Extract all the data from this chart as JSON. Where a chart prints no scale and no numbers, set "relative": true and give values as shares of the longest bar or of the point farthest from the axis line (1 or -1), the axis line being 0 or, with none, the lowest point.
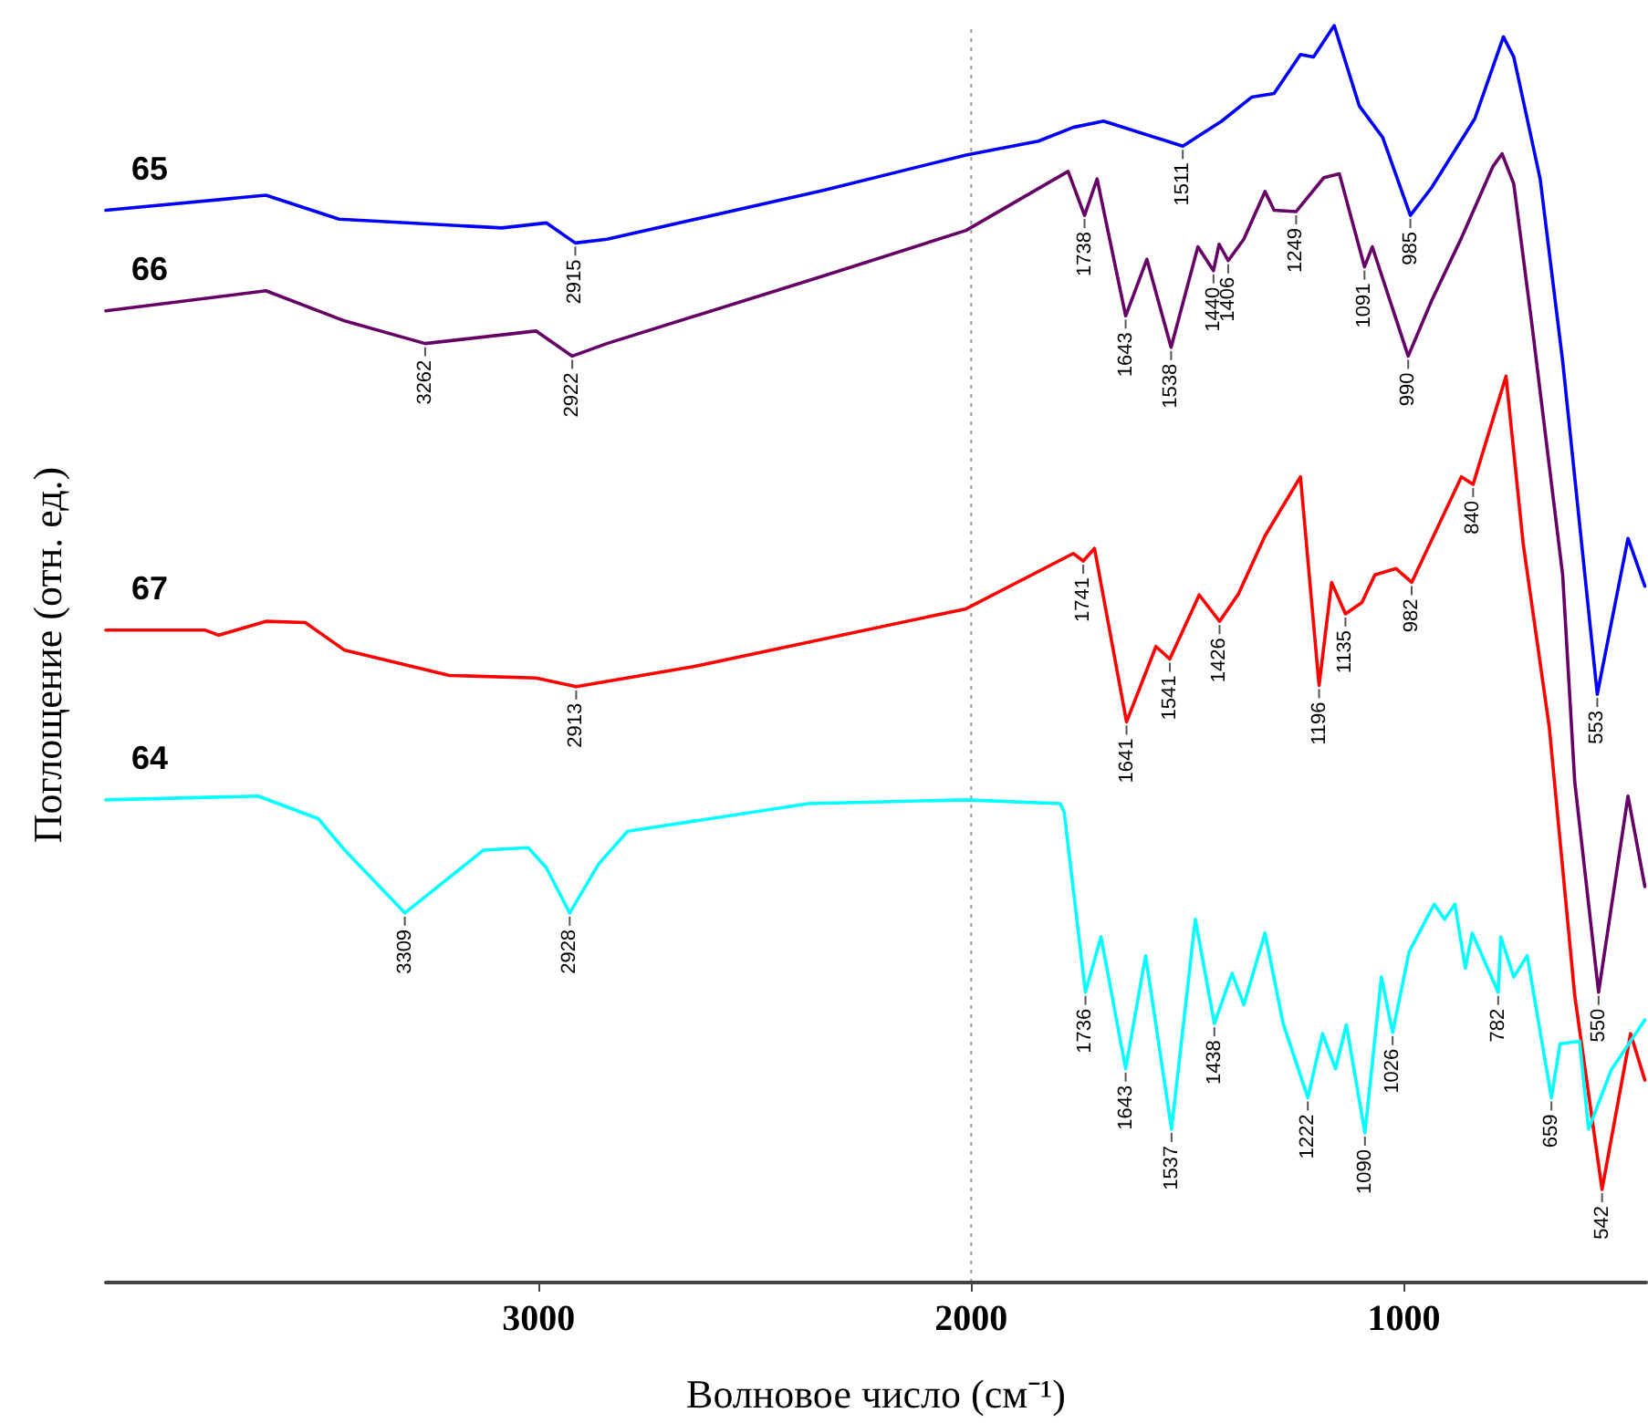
{
  "chart_data": {
    "type": "line",
    "relative": true,
    "xlabel": "Волновое число (см⁻¹)",
    "ylabel": "Поглощение (отн. ед.)",
    "xlim": [
      4000,
      440
    ],
    "xticks": [
      3000,
      2000,
      1000
    ],
    "grid": false,
    "legend": false,
    "marker": "none",
    "line_style": "solid",
    "ref_lines": [
      {
        "axis": "x",
        "value": 2000,
        "color": "#999999",
        "line_style": "dotted"
      }
    ],
    "series": [
      {
        "name": "65",
        "color": "#0000ff",
        "x": [
          4000,
          3630,
          3461,
          3085,
          2982,
          2915,
          2842,
          2340,
          2012,
          1845,
          1764,
          1694,
          1511,
          1421,
          1352,
          1300,
          1239,
          1209,
          1161,
          1103,
          1049,
          985,
          936,
          836,
          770,
          746,
          685,
          633,
          553,
          482,
          443
        ],
        "values": [
          0.853,
          0.865,
          0.846,
          0.839,
          0.843,
          0.827,
          0.83,
          0.869,
          0.897,
          0.908,
          0.919,
          0.924,
          0.904,
          0.924,
          0.943,
          0.946,
          0.977,
          0.975,
          1.0,
          0.936,
          0.911,
          0.849,
          0.871,
          0.926,
          0.991,
          0.975,
          0.878,
          0.733,
          0.468,
          0.592,
          0.554
        ]
      },
      {
        "name": "66",
        "color": "#660066",
        "x": [
          4000,
          3630,
          3448,
          3262,
          3006,
          2922,
          2842,
          2340,
          2012,
          1776,
          1738,
          1709,
          1643,
          1594,
          1538,
          1476,
          1440,
          1427,
          1406,
          1370,
          1321,
          1300,
          1249,
          1185,
          1149,
          1091,
          1073,
          990,
          936,
          867,
          794,
          773,
          746,
          704,
          633,
          605,
          550,
          482,
          443
        ],
        "values": [
          0.773,
          0.789,
          0.765,
          0.747,
          0.757,
          0.737,
          0.747,
          0.801,
          0.837,
          0.884,
          0.849,
          0.878,
          0.769,
          0.814,
          0.744,
          0.824,
          0.805,
          0.826,
          0.813,
          0.83,
          0.868,
          0.853,
          0.852,
          0.879,
          0.882,
          0.808,
          0.824,
          0.737,
          0.781,
          0.831,
          0.888,
          0.898,
          0.874,
          0.762,
          0.563,
          0.398,
          0.231,
          0.387,
          0.315
        ]
      },
      {
        "name": "67",
        "color": "#ff0000",
        "x": [
          4000,
          3770,
          3739,
          3630,
          3539,
          3448,
          3206,
          3006,
          2913,
          2642,
          2012,
          1764,
          1741,
          1715,
          1641,
          1573,
          1541,
          1473,
          1426,
          1382,
          1321,
          1239,
          1196,
          1167,
          1135,
          1097,
          1067,
          1018,
          982,
          867,
          840,
          764,
          724,
          664,
          605,
          542,
          476,
          443
        ],
        "values": [
          0.519,
          0.519,
          0.515,
          0.526,
          0.525,
          0.503,
          0.483,
          0.481,
          0.474,
          0.49,
          0.536,
          0.58,
          0.574,
          0.584,
          0.446,
          0.506,
          0.496,
          0.547,
          0.526,
          0.548,
          0.594,
          0.641,
          0.475,
          0.557,
          0.532,
          0.541,
          0.563,
          0.568,
          0.557,
          0.641,
          0.635,
          0.721,
          0.587,
          0.442,
          0.228,
          0.074,
          0.198,
          0.161
        ]
      },
      {
        "name": "64",
        "color": "#00ffff",
        "x": [
          4000,
          3648,
          3509,
          3448,
          3309,
          3127,
          3024,
          2982,
          2928,
          2861,
          2794,
          2376,
          2012,
          1794,
          1785,
          1736,
          1700,
          1643,
          1597,
          1537,
          1482,
          1438,
          1397,
          1370,
          1321,
          1279,
          1222,
          1188,
          1158,
          1133,
          1090,
          1052,
          1026,
          988,
          930,
          906,
          882,
          858,
          842,
          782,
          776,
          746,
          715,
          659,
          639,
          594,
          573,
          521,
          443
        ],
        "values": [
          0.384,
          0.387,
          0.369,
          0.344,
          0.294,
          0.344,
          0.346,
          0.33,
          0.294,
          0.333,
          0.359,
          0.381,
          0.384,
          0.381,
          0.374,
          0.231,
          0.275,
          0.17,
          0.26,
          0.122,
          0.289,
          0.206,
          0.246,
          0.221,
          0.278,
          0.206,
          0.147,
          0.198,
          0.17,
          0.205,
          0.119,
          0.243,
          0.199,
          0.263,
          0.301,
          0.289,
          0.301,
          0.25,
          0.278,
          0.231,
          0.275,
          0.243,
          0.26,
          0.147,
          0.19,
          0.192,
          0.122,
          0.169,
          0.209
        ]
      }
    ],
    "annotations": [
      {
        "text": "2915",
        "x": 2915,
        "y": 0.827
      },
      {
        "text": "1511",
        "x": 1511,
        "y": 0.904
      },
      {
        "text": "985",
        "x": 985,
        "y": 0.849
      },
      {
        "text": "553",
        "x": 553,
        "y": 0.468
      },
      {
        "text": "3262",
        "x": 3262,
        "y": 0.747
      },
      {
        "text": "2922",
        "x": 2922,
        "y": 0.737
      },
      {
        "text": "1738",
        "x": 1738,
        "y": 0.849
      },
      {
        "text": "1643",
        "x": 1643,
        "y": 0.769
      },
      {
        "text": "1538",
        "x": 1538,
        "y": 0.744
      },
      {
        "text": "1440",
        "x": 1440,
        "y": 0.805
      },
      {
        "text": "1406",
        "x": 1406,
        "y": 0.813
      },
      {
        "text": "1249",
        "x": 1249,
        "y": 0.852
      },
      {
        "text": "1091",
        "x": 1091,
        "y": 0.808
      },
      {
        "text": "990",
        "x": 990,
        "y": 0.737
      },
      {
        "text": "550",
        "x": 550,
        "y": 0.231
      },
      {
        "text": "2913",
        "x": 2913,
        "y": 0.474
      },
      {
        "text": "1741",
        "x": 1741,
        "y": 0.574
      },
      {
        "text": "1641",
        "x": 1641,
        "y": 0.446
      },
      {
        "text": "1541",
        "x": 1541,
        "y": 0.496
      },
      {
        "text": "1426",
        "x": 1426,
        "y": 0.526
      },
      {
        "text": "1196",
        "x": 1196,
        "y": 0.475
      },
      {
        "text": "1135",
        "x": 1135,
        "y": 0.532
      },
      {
        "text": "982",
        "x": 982,
        "y": 0.557
      },
      {
        "text": "840",
        "x": 840,
        "y": 0.635
      },
      {
        "text": "542",
        "x": 542,
        "y": 0.074
      },
      {
        "text": "3309",
        "x": 3309,
        "y": 0.294
      },
      {
        "text": "2928",
        "x": 2928,
        "y": 0.294
      },
      {
        "text": "1736",
        "x": 1736,
        "y": 0.231
      },
      {
        "text": "1643",
        "x": 1643,
        "y": 0.17
      },
      {
        "text": "1537",
        "x": 1537,
        "y": 0.122
      },
      {
        "text": "1438",
        "x": 1438,
        "y": 0.206
      },
      {
        "text": "1222",
        "x": 1222,
        "y": 0.147
      },
      {
        "text": "1090",
        "x": 1090,
        "y": 0.119
      },
      {
        "text": "1026",
        "x": 1026,
        "y": 0.199
      },
      {
        "text": "782",
        "x": 782,
        "y": 0.231
      },
      {
        "text": "659",
        "x": 659,
        "y": 0.147
      }
    ]
  }
}
